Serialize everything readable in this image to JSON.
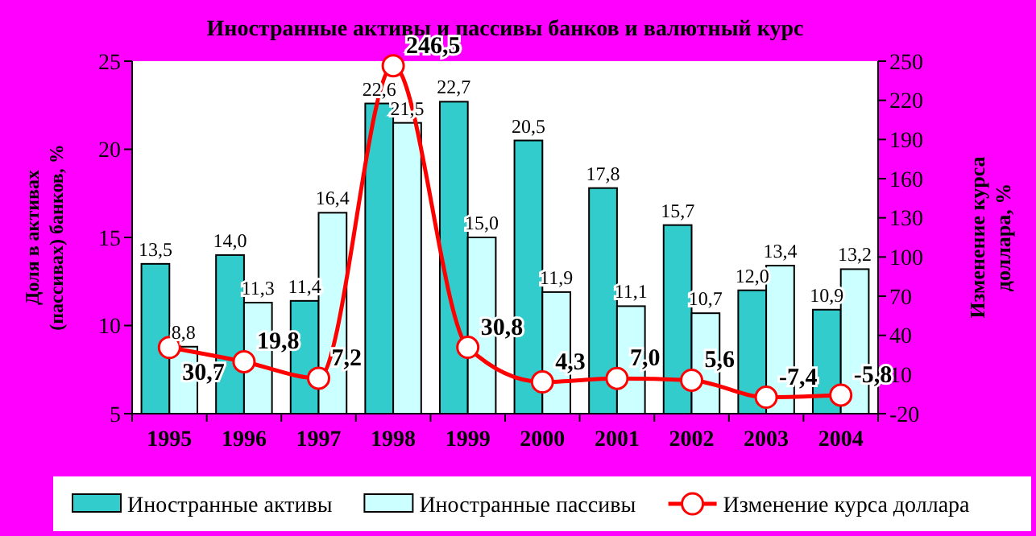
{
  "chart_data": {
    "type": "bar",
    "title": "Иностранные активы и пассивы банков и валютный курс",
    "ylabel": "Доля в активах (пассивах) банков, %",
    "y2label": "Изменение курса доллара, %",
    "categories": [
      "1995",
      "1996",
      "1997",
      "1998",
      "1999",
      "2000",
      "2001",
      "2002",
      "2003",
      "2004"
    ],
    "series": [
      {
        "name": "Иностранные активы",
        "color": "#33cccc",
        "values": [
          13.5,
          14.0,
          11.4,
          22.6,
          22.7,
          20.5,
          17.8,
          15.7,
          12.0,
          10.9
        ],
        "value_labels": [
          "13,5",
          "14,0",
          "11,4",
          "22,6",
          "22,7",
          "20,5",
          "17,8",
          "15,7",
          "12,0",
          "10,9"
        ]
      },
      {
        "name": "Иностранные пассивы",
        "color": "#ccffff",
        "values": [
          8.8,
          11.3,
          16.4,
          21.5,
          15.0,
          11.9,
          11.1,
          10.7,
          13.4,
          13.2
        ],
        "value_labels": [
          "8,8",
          "11,3",
          "16,4",
          "21,5",
          "15,0",
          "11,9",
          "11,1",
          "10,7",
          "13,4",
          "13,2"
        ]
      },
      {
        "name": "Изменение курса доллара",
        "type": "line",
        "axis": "y2",
        "marker": "circle",
        "color": "#ff0000",
        "values": [
          30.7,
          19.8,
          7.2,
          246.5,
          30.8,
          4.3,
          7.0,
          5.6,
          -7.4,
          -5.8
        ],
        "value_labels": [
          "30,7",
          "19,8",
          "7,2",
          "246,5",
          "30,8",
          "4,3",
          "7,0",
          "5,6",
          "-7,4",
          "-5,8"
        ]
      }
    ],
    "ylim": [
      5,
      25
    ],
    "yticks": [
      5,
      10,
      15,
      20,
      25
    ],
    "y2lim": [
      -20,
      250
    ],
    "y2ticks": [
      -20,
      10,
      40,
      70,
      100,
      130,
      160,
      190,
      220,
      250
    ],
    "legend": "bottom"
  }
}
